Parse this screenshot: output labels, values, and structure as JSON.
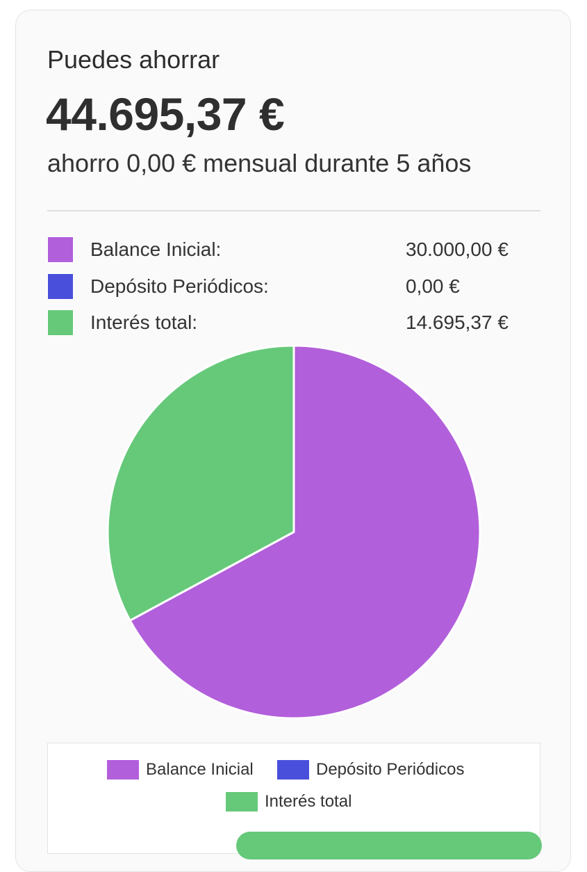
{
  "summary": {
    "headline": "Puedes ahorrar",
    "amount": "44.695,37 €",
    "subline": "ahorro 0,00 € mensual durante 5 años"
  },
  "breakdown": [
    {
      "label": "Balance Inicial:",
      "value": "30.000,00 €",
      "color": "#b25fdb"
    },
    {
      "label": "Depósito Periódicos:",
      "value": "0,00 €",
      "color": "#4a4fdb"
    },
    {
      "label": "Interés total:",
      "value": "14.695,37 €",
      "color": "#66c97a"
    }
  ],
  "chart_data": {
    "type": "pie",
    "categories": [
      "Balance Inicial",
      "Depósito Periódicos",
      "Interés total"
    ],
    "values": [
      30000.0,
      0.0,
      14695.37
    ],
    "colors": [
      "#b25fdb",
      "#4a4fdb",
      "#66c97a"
    ],
    "start_angle_deg": 0,
    "direction": "clockwise",
    "legend": "bottom"
  },
  "legend": {
    "items": [
      {
        "label": "Balance Inicial",
        "color": "#b25fdb"
      },
      {
        "label": "Depósito Periódicos",
        "color": "#4a4fdb"
      },
      {
        "label": "Interés total",
        "color": "#66c97a"
      }
    ]
  }
}
